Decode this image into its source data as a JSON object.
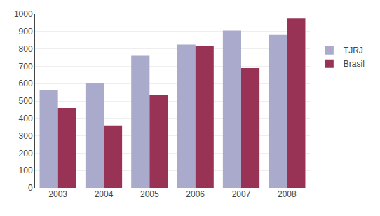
{
  "chart_data": {
    "type": "bar",
    "categories": [
      "2003",
      "2004",
      "2005",
      "2006",
      "2007",
      "2008"
    ],
    "series": [
      {
        "name": "TJRJ",
        "color": "#AAAACC",
        "values": [
          565,
          605,
          760,
          825,
          905,
          880
        ]
      },
      {
        "name": "Brasil",
        "color": "#993355",
        "values": [
          460,
          360,
          535,
          815,
          690,
          975
        ]
      }
    ],
    "ylim": [
      0,
      1000
    ],
    "yticks": [
      0,
      100,
      200,
      300,
      400,
      500,
      600,
      700,
      800,
      900,
      1000
    ],
    "grid": true,
    "legend": "right"
  }
}
